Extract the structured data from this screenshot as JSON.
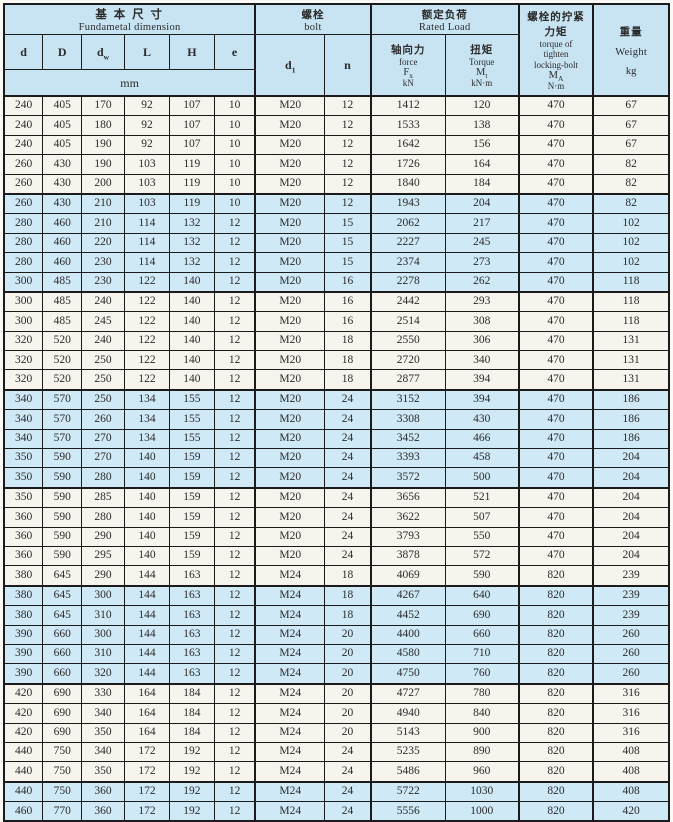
{
  "header": {
    "dimension": {
      "zh": "基 本 尺 寸",
      "en": "Fundametal  dimension",
      "unit": "mm"
    },
    "bolt": {
      "zh": "螺栓",
      "en": "bolt"
    },
    "rated_load": {
      "zh": "额定负荷",
      "en": "Rated  Load"
    },
    "dims": [
      {
        "base": "d",
        "sub": ""
      },
      {
        "base": "D",
        "sub": ""
      },
      {
        "base": "d",
        "sub": "w"
      },
      {
        "base": "L",
        "sub": ""
      },
      {
        "base": "H",
        "sub": ""
      },
      {
        "base": "e",
        "sub": ""
      }
    ],
    "bolt_cols": [
      {
        "base": "d",
        "sub": "1"
      },
      {
        "base": "n",
        "sub": ""
      }
    ],
    "force": {
      "zh": "轴向力",
      "en": "force",
      "symbol_base": "F",
      "symbol_sub": "x",
      "unit": "kN"
    },
    "torque": {
      "zh": "扭矩",
      "en": "Torque",
      "symbol_base": "M",
      "symbol_sub": "t",
      "unit": "kN·m"
    },
    "tighten": {
      "zh_line1": "螺栓的拧紧",
      "zh_line2": "力矩",
      "en_line1": "torque of",
      "en_line2": "tighten",
      "en_line3": "locking-bolt",
      "symbol_base": "M",
      "symbol_sub": "A",
      "unit": "N·m"
    },
    "weight": {
      "zh": "重量",
      "en": "Weight",
      "unit": "kg"
    }
  },
  "columns": [
    "d",
    "D",
    "dw",
    "L",
    "H",
    "e",
    "d1",
    "n",
    "force_kN",
    "torque_kNm",
    "tighten_Nm",
    "weight_kg"
  ],
  "rows": [
    [
      "240",
      "405",
      "170",
      "92",
      "107",
      "10",
      "M20",
      "12",
      "1412",
      "120",
      "470",
      "67"
    ],
    [
      "240",
      "405",
      "180",
      "92",
      "107",
      "10",
      "M20",
      "12",
      "1533",
      "138",
      "470",
      "67"
    ],
    [
      "240",
      "405",
      "190",
      "92",
      "107",
      "10",
      "M20",
      "12",
      "1642",
      "156",
      "470",
      "67"
    ],
    [
      "260",
      "430",
      "190",
      "103",
      "119",
      "10",
      "M20",
      "12",
      "1726",
      "164",
      "470",
      "82"
    ],
    [
      "260",
      "430",
      "200",
      "103",
      "119",
      "10",
      "M20",
      "12",
      "1840",
      "184",
      "470",
      "82"
    ],
    [
      "260",
      "430",
      "210",
      "103",
      "119",
      "10",
      "M20",
      "12",
      "1943",
      "204",
      "470",
      "82"
    ],
    [
      "280",
      "460",
      "210",
      "114",
      "132",
      "12",
      "M20",
      "15",
      "2062",
      "217",
      "470",
      "102"
    ],
    [
      "280",
      "460",
      "220",
      "114",
      "132",
      "12",
      "M20",
      "15",
      "2227",
      "245",
      "470",
      "102"
    ],
    [
      "280",
      "460",
      "230",
      "114",
      "132",
      "12",
      "M20",
      "15",
      "2374",
      "273",
      "470",
      "102"
    ],
    [
      "300",
      "485",
      "230",
      "122",
      "140",
      "12",
      "M20",
      "16",
      "2278",
      "262",
      "470",
      "118"
    ],
    [
      "300",
      "485",
      "240",
      "122",
      "140",
      "12",
      "M20",
      "16",
      "2442",
      "293",
      "470",
      "118"
    ],
    [
      "300",
      "485",
      "245",
      "122",
      "140",
      "12",
      "M20",
      "16",
      "2514",
      "308",
      "470",
      "118"
    ],
    [
      "320",
      "520",
      "240",
      "122",
      "140",
      "12",
      "M20",
      "18",
      "2550",
      "306",
      "470",
      "131"
    ],
    [
      "320",
      "520",
      "250",
      "122",
      "140",
      "12",
      "M20",
      "18",
      "2720",
      "340",
      "470",
      "131"
    ],
    [
      "320",
      "520",
      "250",
      "122",
      "140",
      "12",
      "M20",
      "18",
      "2877",
      "394",
      "470",
      "131"
    ],
    [
      "340",
      "570",
      "250",
      "134",
      "155",
      "12",
      "M20",
      "24",
      "3152",
      "394",
      "470",
      "186"
    ],
    [
      "340",
      "570",
      "260",
      "134",
      "155",
      "12",
      "M20",
      "24",
      "3308",
      "430",
      "470",
      "186"
    ],
    [
      "340",
      "570",
      "270",
      "134",
      "155",
      "12",
      "M20",
      "24",
      "3452",
      "466",
      "470",
      "186"
    ],
    [
      "350",
      "590",
      "270",
      "140",
      "159",
      "12",
      "M20",
      "24",
      "3393",
      "458",
      "470",
      "204"
    ],
    [
      "350",
      "590",
      "280",
      "140",
      "159",
      "12",
      "M20",
      "24",
      "3572",
      "500",
      "470",
      "204"
    ],
    [
      "350",
      "590",
      "285",
      "140",
      "159",
      "12",
      "M20",
      "24",
      "3656",
      "521",
      "470",
      "204"
    ],
    [
      "360",
      "590",
      "280",
      "140",
      "159",
      "12",
      "M20",
      "24",
      "3622",
      "507",
      "470",
      "204"
    ],
    [
      "360",
      "590",
      "290",
      "140",
      "159",
      "12",
      "M20",
      "24",
      "3793",
      "550",
      "470",
      "204"
    ],
    [
      "360",
      "590",
      "295",
      "140",
      "159",
      "12",
      "M20",
      "24",
      "3878",
      "572",
      "470",
      "204"
    ],
    [
      "380",
      "645",
      "290",
      "144",
      "163",
      "12",
      "M24",
      "18",
      "4069",
      "590",
      "820",
      "239"
    ],
    [
      "380",
      "645",
      "300",
      "144",
      "163",
      "12",
      "M24",
      "18",
      "4267",
      "640",
      "820",
      "239"
    ],
    [
      "380",
      "645",
      "310",
      "144",
      "163",
      "12",
      "M24",
      "18",
      "4452",
      "690",
      "820",
      "239"
    ],
    [
      "390",
      "660",
      "300",
      "144",
      "163",
      "12",
      "M24",
      "20",
      "4400",
      "660",
      "820",
      "260"
    ],
    [
      "390",
      "660",
      "310",
      "144",
      "163",
      "12",
      "M24",
      "20",
      "4580",
      "710",
      "820",
      "260"
    ],
    [
      "390",
      "660",
      "320",
      "144",
      "163",
      "12",
      "M24",
      "20",
      "4750",
      "760",
      "820",
      "260"
    ],
    [
      "420",
      "690",
      "330",
      "164",
      "184",
      "12",
      "M24",
      "20",
      "4727",
      "780",
      "820",
      "316"
    ],
    [
      "420",
      "690",
      "340",
      "164",
      "184",
      "12",
      "M24",
      "20",
      "4940",
      "840",
      "820",
      "316"
    ],
    [
      "420",
      "690",
      "350",
      "164",
      "184",
      "12",
      "M24",
      "20",
      "5143",
      "900",
      "820",
      "316"
    ],
    [
      "440",
      "750",
      "340",
      "172",
      "192",
      "12",
      "M24",
      "24",
      "5235",
      "890",
      "820",
      "408"
    ],
    [
      "440",
      "750",
      "350",
      "172",
      "192",
      "12",
      "M24",
      "24",
      "5486",
      "960",
      "820",
      "408"
    ],
    [
      "440",
      "750",
      "360",
      "172",
      "192",
      "12",
      "M24",
      "24",
      "5722",
      "1030",
      "820",
      "408"
    ],
    [
      "460",
      "770",
      "360",
      "172",
      "192",
      "12",
      "M24",
      "24",
      "5556",
      "1000",
      "820",
      "420"
    ]
  ],
  "shaded_rows": [
    6,
    7,
    8,
    9,
    10,
    16,
    17,
    18,
    19,
    20,
    26,
    27,
    28,
    29,
    30,
    36,
    37
  ],
  "group_size": 5,
  "colors": {
    "header_bg": "#c8e4f3",
    "shaded_row_bg": "#cfe9f7",
    "plain_row_bg": "#f7f4ee",
    "border": "#1b1b1b",
    "text": "#2b2b2b"
  }
}
